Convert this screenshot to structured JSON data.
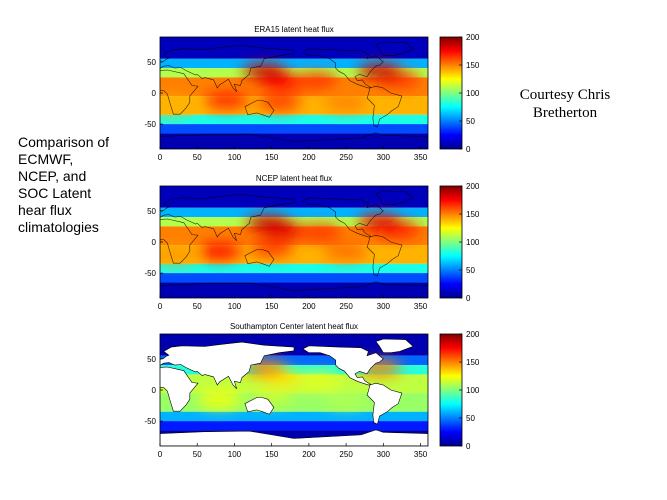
{
  "caption": {
    "lines": [
      "Comparison of",
      "ECMWF,",
      "NCEP, and",
      "SOC Latent",
      "hear flux",
      "climatologies"
    ]
  },
  "credit": {
    "lines": [
      "Courtesy Chris",
      "Bretherton"
    ]
  },
  "colors": {
    "colormap": [
      "#00008f",
      "#0000ff",
      "#0080ff",
      "#00ffff",
      "#80ff80",
      "#ffff00",
      "#ff8000",
      "#ff0000",
      "#800000"
    ],
    "land_mask": "#ffffff"
  },
  "chart_data": [
    {
      "type": "heatmap",
      "title": "ERA15 latent heat flux",
      "xlabel": "",
      "ylabel": "",
      "x_ticks": [
        "0",
        "50",
        "100",
        "150",
        "200",
        "250",
        "300",
        "350"
      ],
      "y_ticks": [
        "50",
        "0",
        "-50"
      ],
      "xlim": [
        0,
        360
      ],
      "ylim": [
        -90,
        90
      ],
      "colorbar": {
        "range": [
          0,
          200
        ],
        "ticks": [
          "200",
          "150",
          "100",
          "50",
          "0"
        ]
      },
      "land_masked": false,
      "features": [
        {
          "lon": 165,
          "lat": 18,
          "value": 175
        },
        {
          "lon": 210,
          "lat": 20,
          "value": 165
        },
        {
          "lon": 320,
          "lat": 22,
          "value": 165
        },
        {
          "lon": 90,
          "lat": -12,
          "value": 170
        },
        {
          "lon": 160,
          "lat": -15,
          "value": 165
        },
        {
          "lon": 250,
          "lat": -15,
          "value": 150
        },
        {
          "lon": 15,
          "lat": -20,
          "value": 140
        },
        {
          "lon": 140,
          "lat": 35,
          "value": 185
        },
        {
          "lon": 295,
          "lat": 35,
          "value": 185
        }
      ]
    },
    {
      "type": "heatmap",
      "title": "NCEP latent heat flux",
      "xlabel": "",
      "ylabel": "",
      "x_ticks": [
        "0",
        "50",
        "100",
        "150",
        "200",
        "250",
        "300",
        "350"
      ],
      "y_ticks": [
        "50",
        "0",
        "-50"
      ],
      "xlim": [
        0,
        360
      ],
      "ylim": [
        -90,
        90
      ],
      "colorbar": {
        "range": [
          0,
          200
        ],
        "ticks": [
          "200",
          "150",
          "100",
          "50",
          "0"
        ]
      },
      "land_masked": false,
      "features": [
        {
          "lon": 165,
          "lat": 18,
          "value": 180
        },
        {
          "lon": 215,
          "lat": 15,
          "value": 165
        },
        {
          "lon": 320,
          "lat": 20,
          "value": 170
        },
        {
          "lon": 80,
          "lat": -15,
          "value": 175
        },
        {
          "lon": 150,
          "lat": -10,
          "value": 165
        },
        {
          "lon": 250,
          "lat": -15,
          "value": 155
        },
        {
          "lon": 20,
          "lat": -20,
          "value": 145
        },
        {
          "lon": 145,
          "lat": 30,
          "value": 185
        },
        {
          "lon": 295,
          "lat": 32,
          "value": 180
        }
      ]
    },
    {
      "type": "heatmap",
      "title": "Southampton Center latent heat flux",
      "xlabel": "",
      "ylabel": "",
      "x_ticks": [
        "0",
        "50",
        "100",
        "150",
        "200",
        "250",
        "300",
        "350"
      ],
      "y_ticks": [
        "50",
        "0",
        "-50"
      ],
      "xlim": [
        0,
        360
      ],
      "ylim": [
        -90,
        90
      ],
      "colorbar": {
        "range": [
          0,
          200
        ],
        "ticks": [
          "200",
          "150",
          "100",
          "50",
          "0"
        ]
      },
      "land_masked": true,
      "features": [
        {
          "lon": 165,
          "lat": 18,
          "value": 130
        },
        {
          "lon": 215,
          "lat": 15,
          "value": 120
        },
        {
          "lon": 80,
          "lat": -15,
          "value": 125
        },
        {
          "lon": 150,
          "lat": -10,
          "value": 115
        },
        {
          "lon": 250,
          "lat": -15,
          "value": 110
        },
        {
          "lon": 140,
          "lat": 35,
          "value": 150
        },
        {
          "lon": 295,
          "lat": 35,
          "value": 150
        }
      ]
    }
  ]
}
